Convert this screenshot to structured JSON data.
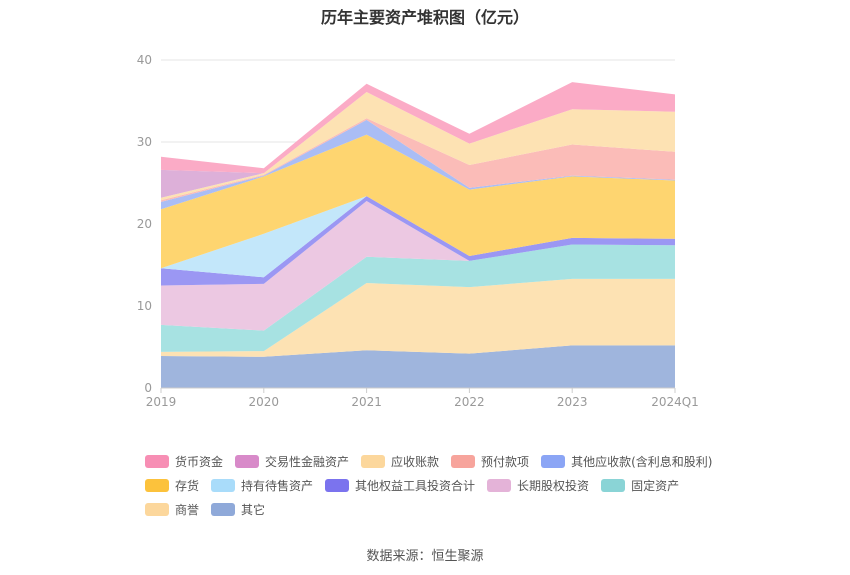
{
  "chart_data": {
    "type": "area",
    "stacked": true,
    "title": "历年主要资产堆积图（亿元）",
    "categories": [
      "2019",
      "2020",
      "2021",
      "2022",
      "2023",
      "2024Q1"
    ],
    "ylim": [
      0,
      40
    ],
    "yticks": [
      0,
      10,
      20,
      30,
      40
    ],
    "grid": true,
    "legend_position": "bottom",
    "series": [
      {
        "name": "其它",
        "color": "#9fb5dd",
        "values": [
          3.9,
          3.8,
          4.6,
          4.2,
          5.2,
          5.2
        ]
      },
      {
        "name": "商誉",
        "color": "#fde2b3",
        "values": [
          0.5,
          0.7,
          8.2,
          8.1,
          8.1,
          8.1
        ]
      },
      {
        "name": "固定资产",
        "color": "#a7e2e2",
        "values": [
          3.3,
          2.5,
          3.2,
          3.2,
          4.2,
          4.1
        ]
      },
      {
        "name": "长期股权投资",
        "color": "#ecc8e2",
        "values": [
          4.8,
          5.7,
          6.8,
          0.0,
          0.0,
          0.0
        ]
      },
      {
        "name": "其他权益工具投资合计",
        "color": "#9b97f3",
        "values": [
          2.1,
          0.8,
          0.6,
          0.6,
          0.8,
          0.8
        ]
      },
      {
        "name": "持有待售资产",
        "color": "#c3e7fa",
        "values": [
          0.0,
          5.3,
          0.0,
          0.0,
          0.0,
          0.0
        ]
      },
      {
        "name": "存货",
        "color": "#fed570",
        "values": [
          7.2,
          7.0,
          7.5,
          8.1,
          7.5,
          7.1
        ]
      },
      {
        "name": "其他应收款(含利息和股利)",
        "color": "#aabdf5",
        "values": [
          0.9,
          0.1,
          1.8,
          0.2,
          0.1,
          0.1
        ]
      },
      {
        "name": "预付款项",
        "color": "#fbbcb8",
        "values": [
          0.2,
          0.1,
          0.2,
          2.8,
          3.8,
          3.4
        ]
      },
      {
        "name": "应收账款",
        "color": "#fde2b3",
        "values": [
          0.3,
          0.2,
          3.2,
          2.6,
          4.3,
          4.9
        ]
      },
      {
        "name": "交易性金融资产",
        "color": "#ddb0d9",
        "values": [
          3.4,
          0.0,
          0.0,
          0.0,
          0.0,
          0.0
        ]
      },
      {
        "name": "货币资金",
        "color": "#fbabc6",
        "values": [
          1.6,
          0.6,
          1.0,
          1.2,
          3.3,
          2.1
        ]
      }
    ]
  },
  "legend": [
    [
      {
        "label": "货币资金",
        "color": "#f78eb4"
      },
      {
        "label": "交易性金融资产",
        "color": "#d88ac9"
      },
      {
        "label": "应收账款",
        "color": "#fcd79c"
      },
      {
        "label": "预付款项",
        "color": "#f7a49c"
      },
      {
        "label": "其他应收款(含利息和股利)",
        "color": "#8ba5f5"
      }
    ],
    [
      {
        "label": "存货",
        "color": "#fcc23c"
      },
      {
        "label": "持有待售资产",
        "color": "#a9dcfa"
      },
      {
        "label": "其他权益工具投资合计",
        "color": "#7b73ee"
      },
      {
        "label": "长期股权投资",
        "color": "#e4b3d8"
      },
      {
        "label": "固定资产",
        "color": "#8ad4d6"
      }
    ],
    [
      {
        "label": "商誉",
        "color": "#fcd79c"
      },
      {
        "label": "其它",
        "color": "#8fa9d9"
      }
    ]
  ],
  "source": "数据来源：恒生聚源"
}
